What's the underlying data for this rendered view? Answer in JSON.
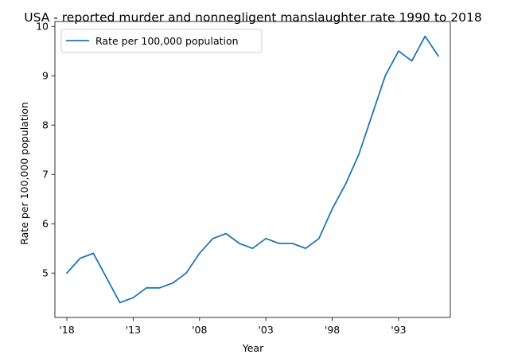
{
  "chart_data": {
    "type": "line",
    "title": "USA - reported murder and nonnegligent manslaughter rate 1990 to 2018",
    "xlabel": "Year",
    "ylabel": "Rate per 100,000 population",
    "x": [
      2018,
      2017,
      2016,
      2015,
      2014,
      2013,
      2012,
      2011,
      2010,
      2009,
      2008,
      2007,
      2006,
      2005,
      2004,
      2003,
      2002,
      2001,
      2000,
      1999,
      1998,
      1997,
      1996,
      1995,
      1994,
      1993,
      1992,
      1991,
      1990
    ],
    "x_ticks": [
      2018,
      2013,
      2008,
      2003,
      1998,
      1993
    ],
    "x_tick_labels": [
      "'18",
      "'13",
      "'08",
      "'03",
      "'98",
      "'93"
    ],
    "xlim": [
      2018.9,
      1989.1
    ],
    "y_ticks": [
      5,
      6,
      7,
      8,
      9,
      10
    ],
    "ylim": [
      4.1,
      10.1
    ],
    "grid": false,
    "legend_position": "upper-left",
    "series": [
      {
        "name": "Rate per 100,000 population",
        "color": "#1f77b4",
        "values": [
          5.0,
          5.3,
          5.4,
          4.9,
          4.4,
          4.5,
          4.7,
          4.7,
          4.8,
          5.0,
          5.4,
          5.7,
          5.8,
          5.6,
          5.5,
          5.7,
          5.6,
          5.6,
          5.5,
          5.7,
          6.3,
          6.8,
          7.4,
          8.2,
          9.0,
          9.5,
          9.3,
          9.8,
          9.4
        ]
      }
    ]
  }
}
